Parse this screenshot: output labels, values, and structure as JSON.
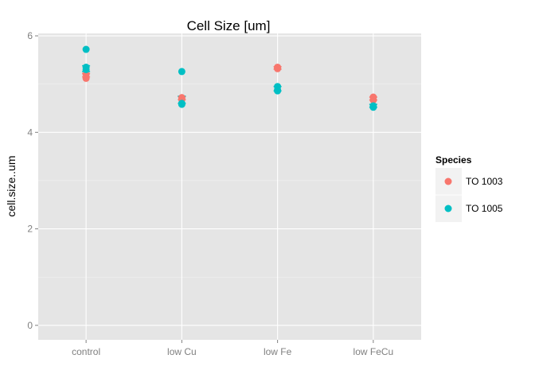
{
  "chart_data": {
    "type": "scatter",
    "title": "Cell Size [um]",
    "xlabel": "",
    "ylabel": "cell.size..um",
    "categories": [
      "control",
      "low Cu",
      "low Fe",
      "low FeCu"
    ],
    "yticks": [
      "0",
      "2",
      "4",
      "6"
    ],
    "ylim": [
      -0.3,
      6.05
    ],
    "grid": true,
    "legend": {
      "title": "Species",
      "placement": "right",
      "entries": [
        "TO 1003",
        "TO 1005"
      ]
    },
    "series": [
      {
        "name": "TO 1003",
        "color": "#F8766D",
        "points": [
          {
            "category": "control",
            "y": 5.12
          },
          {
            "category": "control",
            "y": 5.2
          },
          {
            "category": "low Cu",
            "y": 4.68
          },
          {
            "category": "low Cu",
            "y": 4.72
          },
          {
            "category": "low Fe",
            "y": 5.32
          },
          {
            "category": "low Fe",
            "y": 5.35
          },
          {
            "category": "low Fe",
            "y": 5.33
          },
          {
            "category": "low FeCu",
            "y": 4.67
          },
          {
            "category": "low FeCu",
            "y": 4.73
          }
        ],
        "error_bars": [
          {
            "category": "control",
            "low": 5.15,
            "high": 5.22
          },
          {
            "category": "low Cu",
            "low": 4.68,
            "high": 4.74
          },
          {
            "category": "low Fe",
            "low": 5.31,
            "high": 5.36
          },
          {
            "category": "low FeCu",
            "low": 4.67,
            "high": 4.73
          }
        ]
      },
      {
        "name": "TO 1005",
        "color": "#00BFC4",
        "points": [
          {
            "category": "control",
            "y": 5.72
          },
          {
            "category": "control",
            "y": 5.3
          },
          {
            "category": "control",
            "y": 5.35
          },
          {
            "category": "low Cu",
            "y": 5.26
          },
          {
            "category": "low Cu",
            "y": 4.6
          },
          {
            "category": "low Cu",
            "y": 4.58
          },
          {
            "category": "low Fe",
            "y": 4.95
          },
          {
            "category": "low Fe",
            "y": 4.88
          },
          {
            "category": "low Fe",
            "y": 4.86
          },
          {
            "category": "low FeCu",
            "y": 4.55
          },
          {
            "category": "low FeCu",
            "y": 4.52
          }
        ],
        "error_bars": [
          {
            "category": "control",
            "low": 5.26,
            "high": 5.38
          },
          {
            "category": "low Cu",
            "low": 4.6,
            "high": 4.75
          },
          {
            "category": "low Fe",
            "low": 4.86,
            "high": 4.95
          },
          {
            "category": "low FeCu",
            "low": 4.52,
            "high": 4.58
          }
        ]
      }
    ]
  }
}
